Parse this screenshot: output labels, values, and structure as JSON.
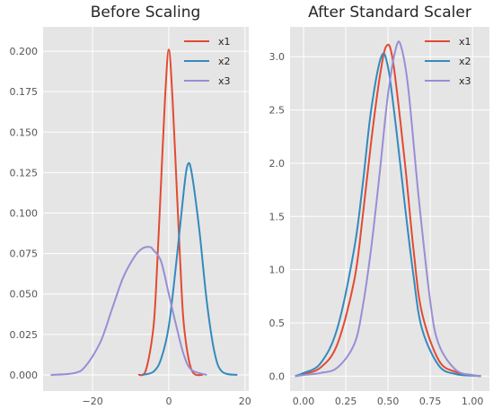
{
  "chart_data": [
    {
      "type": "line",
      "title": "Before Scaling",
      "xlabel": "",
      "ylabel": "",
      "xlim": [
        -33,
        21
      ],
      "ylim": [
        -0.01,
        0.215
      ],
      "xticks": [
        -20,
        0,
        20
      ],
      "xtick_labels": [
        "−20",
        "0",
        "20"
      ],
      "yticks": [
        0.0,
        0.025,
        0.05,
        0.075,
        0.1,
        0.125,
        0.15,
        0.175,
        0.2
      ],
      "ytick_labels": [
        "0.000",
        "0.025",
        "0.050",
        "0.075",
        "0.100",
        "0.125",
        "0.150",
        "0.175",
        "0.200"
      ],
      "grid": true,
      "legend": "top-right",
      "series": [
        {
          "name": "x1",
          "color": "#e24a33",
          "x": [
            -8,
            -6,
            -4,
            -3,
            -2,
            -1,
            0,
            1,
            2,
            3,
            4,
            6,
            9
          ],
          "y": [
            0.0,
            0.003,
            0.03,
            0.07,
            0.12,
            0.17,
            0.201,
            0.17,
            0.12,
            0.07,
            0.03,
            0.003,
            0.0
          ]
        },
        {
          "name": "x2",
          "color": "#348abd",
          "x": [
            -7,
            -4,
            -2,
            0,
            2,
            4,
            5,
            6,
            8,
            10,
            12,
            14,
            18
          ],
          "y": [
            0.0,
            0.002,
            0.01,
            0.03,
            0.07,
            0.115,
            0.13,
            0.125,
            0.09,
            0.045,
            0.014,
            0.002,
            0.0
          ]
        },
        {
          "name": "x3",
          "color": "#988ed5",
          "x": [
            -31,
            -25,
            -22,
            -18,
            -15,
            -12,
            -9,
            -7,
            -5,
            -4,
            -2,
            0,
            2,
            4,
            6,
            10
          ],
          "y": [
            0.0,
            0.001,
            0.005,
            0.02,
            0.04,
            0.06,
            0.073,
            0.078,
            0.079,
            0.077,
            0.07,
            0.05,
            0.03,
            0.012,
            0.003,
            0.0
          ]
        }
      ]
    },
    {
      "type": "line",
      "title": "After Standard Scaler",
      "xlabel": "",
      "ylabel": "",
      "xlim": [
        -0.08,
        1.1
      ],
      "ylim": [
        -0.14,
        3.28
      ],
      "xticks": [
        0.0,
        0.25,
        0.5,
        0.75,
        1.0
      ],
      "xtick_labels": [
        "0.00",
        "0.25",
        "0.50",
        "0.75",
        "1.00"
      ],
      "yticks": [
        0.0,
        0.5,
        1.0,
        1.5,
        2.0,
        2.5,
        3.0
      ],
      "ytick_labels": [
        "0.0",
        "0.5",
        "1.0",
        "1.5",
        "2.0",
        "2.5",
        "3.0"
      ],
      "grid": true,
      "legend": "top-right",
      "series": [
        {
          "name": "x1",
          "color": "#e24a33",
          "x": [
            -0.05,
            0.0,
            0.1,
            0.2,
            0.3,
            0.35,
            0.4,
            0.45,
            0.49,
            0.53,
            0.6,
            0.65,
            0.7,
            0.8,
            0.9,
            1.0,
            1.05
          ],
          "y": [
            0.0,
            0.02,
            0.08,
            0.3,
            0.9,
            1.5,
            2.2,
            2.8,
            3.1,
            2.95,
            2.0,
            1.2,
            0.6,
            0.15,
            0.04,
            0.01,
            0.0
          ]
        },
        {
          "name": "x2",
          "color": "#348abd",
          "x": [
            -0.05,
            0.0,
            0.1,
            0.2,
            0.3,
            0.35,
            0.4,
            0.46,
            0.5,
            0.55,
            0.6,
            0.65,
            0.7,
            0.8,
            0.9,
            1.0,
            1.05
          ],
          "y": [
            0.0,
            0.03,
            0.12,
            0.45,
            1.2,
            1.8,
            2.5,
            3.0,
            2.9,
            2.3,
            1.6,
            0.95,
            0.45,
            0.1,
            0.02,
            0.005,
            0.0
          ]
        },
        {
          "name": "x3",
          "color": "#988ed5",
          "x": [
            -0.05,
            0.0,
            0.1,
            0.2,
            0.3,
            0.35,
            0.4,
            0.45,
            0.5,
            0.55,
            0.58,
            0.62,
            0.68,
            0.75,
            0.8,
            0.9,
            1.0,
            1.05
          ],
          "y": [
            0.0,
            0.01,
            0.03,
            0.08,
            0.3,
            0.65,
            1.2,
            1.9,
            2.65,
            3.1,
            3.08,
            2.7,
            1.7,
            0.7,
            0.3,
            0.06,
            0.01,
            0.0
          ]
        }
      ]
    }
  ]
}
